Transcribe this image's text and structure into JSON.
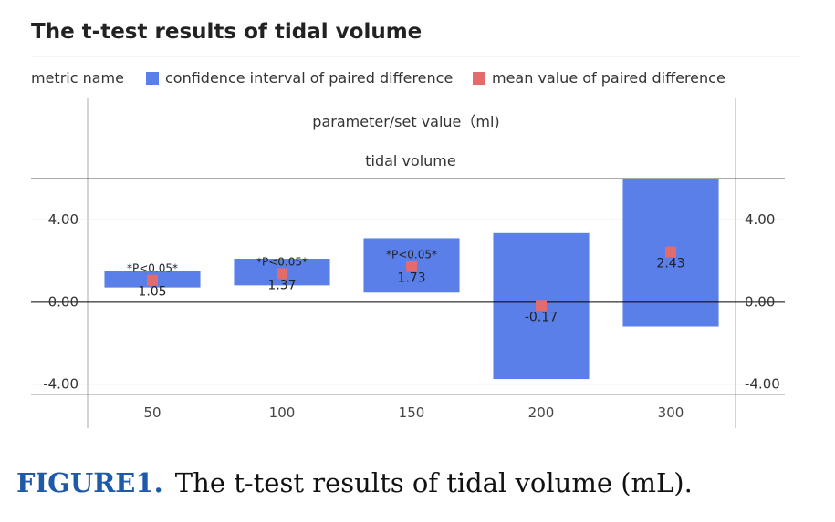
{
  "caption": {
    "label": "FIGURE1.",
    "text": "The t-test results of tidal volume (mL)."
  },
  "colors": {
    "interval": "#5b7fe8",
    "mean": "#e46b6b",
    "zero_line": "#000000",
    "grid": "#e6e6e6",
    "frame": "#999999"
  },
  "chart_data": {
    "type": "bar",
    "title": "The t-test results of tidal volume",
    "legend": {
      "placement": "top-left",
      "title": "metric name",
      "entries": [
        "confidence interval of paired difference",
        "mean value of paired difference"
      ]
    },
    "header": {
      "group_label": "parameter/set value（ml)",
      "sub_label": "tidal volume"
    },
    "categories": [
      "50",
      "100",
      "150",
      "200",
      "300"
    ],
    "series": [
      {
        "name": "confidence interval of paired difference",
        "low": [
          0.7,
          0.8,
          0.45,
          -3.75,
          -1.2
        ],
        "high": [
          1.5,
          2.1,
          3.1,
          3.35,
          6.5
        ]
      },
      {
        "name": "mean value of paired difference",
        "values": [
          1.05,
          1.37,
          1.73,
          -0.17,
          2.43
        ],
        "labels": [
          "1.05",
          "1.37",
          "1.73",
          "-0.17",
          "2.43"
        ]
      }
    ],
    "annotations": [
      "*P<0.05*",
      "*P<0.05*",
      "*P<0.05*",
      "",
      ""
    ],
    "yticks": [
      "4.00",
      "0.00",
      "-4.00"
    ],
    "ytick_values": [
      4,
      0,
      -4
    ],
    "ylim": [
      -4.5,
      6.0
    ],
    "xlabel": "",
    "ylabel": "",
    "grid": true
  }
}
